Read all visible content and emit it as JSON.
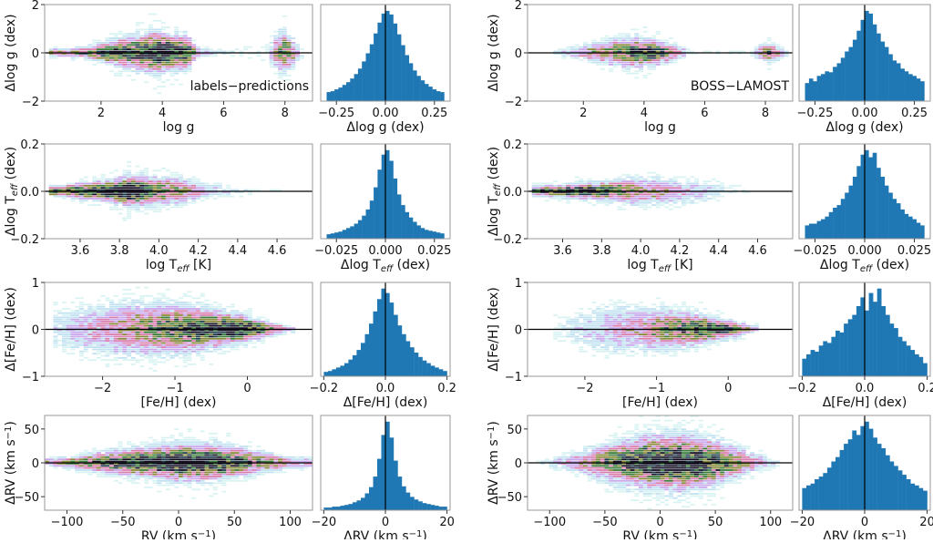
{
  "colors": {
    "hist": "#1f77b4",
    "zero_line": "#000000",
    "frame": "#999999"
  },
  "colormap": [
    "#d9f3f3",
    "#c2e2f2",
    "#c9a8ec",
    "#d97fae",
    "#8a8a3c",
    "#3a7d3c",
    "#1e3c4c",
    "#140f24"
  ],
  "chart_data": [
    {
      "type": "heatmap",
      "group": "left",
      "row": 0,
      "annotation": "labels−predictions",
      "xlim": [
        0.16,
        8.9
      ],
      "ylim": [
        -2,
        2
      ],
      "xticks": [
        2,
        4,
        6,
        8
      ],
      "xticklabels": [
        "2",
        "4",
        "6",
        "8"
      ],
      "yticks": [
        -2,
        0,
        2
      ],
      "yticklabels": [
        "−2",
        "0",
        "2"
      ],
      "xlabel": [
        {
          "t": "log g",
          "s": ""
        }
      ],
      "ylabel": [
        {
          "t": "Δlog g (dex)",
          "s": ""
        }
      ],
      "ridge": [
        [
          0.4,
          0.1,
          0.3
        ],
        [
          1.5,
          0.12,
          0.5
        ],
        [
          2.5,
          0.25,
          0.8
        ],
        [
          3.2,
          0.35,
          0.7
        ],
        [
          3.8,
          0.4,
          0.9
        ],
        [
          4.3,
          0.3,
          1.0
        ],
        [
          4.8,
          0.35,
          0.7
        ],
        [
          5.2,
          0.1,
          0.25
        ],
        [
          6,
          0.1,
          0.06
        ],
        [
          7.4,
          0.3,
          0.04
        ],
        [
          8.0,
          0.45,
          0.6
        ],
        [
          8.5,
          0.2,
          0.08
        ]
      ]
    },
    {
      "type": "bar",
      "group": "left",
      "row": 0,
      "xlim": [
        -0.33,
        0.33
      ],
      "xticks": [
        -0.25,
        0,
        0.25
      ],
      "xticklabels": [
        "−0.25",
        "0.00",
        "0.25"
      ],
      "xlabel": [
        {
          "t": "Δlog g (dex)",
          "s": ""
        }
      ],
      "range": [
        -0.3,
        0.3
      ],
      "values": [
        0.1,
        0.11,
        0.13,
        0.15,
        0.18,
        0.21,
        0.25,
        0.3,
        0.36,
        0.44,
        0.53,
        0.63,
        0.75,
        0.87,
        0.97,
        1.0,
        0.96,
        0.86,
        0.74,
        0.62,
        0.51,
        0.42,
        0.34,
        0.28,
        0.23,
        0.19,
        0.16,
        0.13,
        0.11,
        0.1
      ]
    },
    {
      "type": "heatmap",
      "group": "right",
      "row": 0,
      "annotation": "BOSS−LAMOST",
      "xlim": [
        0.16,
        8.9
      ],
      "ylim": [
        -2,
        2
      ],
      "xticks": [
        2,
        4,
        6,
        8
      ],
      "xticklabels": [
        "2",
        "4",
        "6",
        "8"
      ],
      "yticks": [
        -2,
        0,
        2
      ],
      "yticklabels": [
        "−2",
        "0",
        "2"
      ],
      "xlabel": [
        {
          "t": "log g",
          "s": ""
        }
      ],
      "ylabel": [
        {
          "t": "Δlog g (dex)",
          "s": ""
        }
      ],
      "ridge": [
        [
          1.2,
          0.1,
          0.1
        ],
        [
          2.4,
          0.2,
          0.4
        ],
        [
          3.2,
          0.3,
          0.5
        ],
        [
          3.8,
          0.3,
          0.7
        ],
        [
          4.3,
          0.25,
          0.8
        ],
        [
          4.9,
          0.2,
          0.4
        ],
        [
          5.5,
          0.1,
          0.05
        ],
        [
          7.5,
          0.1,
          0.03
        ],
        [
          8.1,
          0.2,
          0.6
        ],
        [
          8.6,
          0.15,
          0.1
        ]
      ]
    },
    {
      "type": "bar",
      "group": "right",
      "row": 0,
      "xlim": [
        -0.33,
        0.33
      ],
      "xticks": [
        -0.25,
        0,
        0.25
      ],
      "xticklabels": [
        "−0.25",
        "0.00",
        "0.25"
      ],
      "xlabel": [
        {
          "t": "Δlog g (dex)",
          "s": ""
        }
      ],
      "range": [
        -0.3,
        0.3
      ],
      "values": [
        0.2,
        0.25,
        0.22,
        0.28,
        0.3,
        0.33,
        0.32,
        0.38,
        0.42,
        0.48,
        0.55,
        0.6,
        0.68,
        0.78,
        0.9,
        1.0,
        0.97,
        0.85,
        0.75,
        0.66,
        0.6,
        0.52,
        0.45,
        0.42,
        0.36,
        0.33,
        0.3,
        0.28,
        0.25,
        0.22
      ]
    },
    {
      "type": "heatmap",
      "group": "left",
      "row": 1,
      "xlim": [
        3.42,
        4.78
      ],
      "ylim": [
        -0.2,
        0.2
      ],
      "xticks": [
        3.6,
        3.8,
        4.0,
        4.2,
        4.4,
        4.6
      ],
      "xticklabels": [
        "3.6",
        "3.8",
        "4.0",
        "4.2",
        "4.4",
        "4.6"
      ],
      "yticks": [
        -0.2,
        0,
        0.2
      ],
      "yticklabels": [
        "−0.2",
        "0.0",
        "0.2"
      ],
      "xlabel": [
        {
          "t": "log T",
          "s": ""
        },
        {
          "t": "eff",
          "s": "sub"
        },
        {
          "t": " [K]",
          "s": ""
        }
      ],
      "ylabel": [
        {
          "t": "Δlog T",
          "s": ""
        },
        {
          "t": "eff",
          "s": "sub"
        },
        {
          "t": " (dex)",
          "s": ""
        }
      ],
      "ridge": [
        [
          3.46,
          0.01,
          0.6
        ],
        [
          3.6,
          0.015,
          0.8
        ],
        [
          3.75,
          0.02,
          0.9
        ],
        [
          3.85,
          0.03,
          1.0
        ],
        [
          3.95,
          0.03,
          0.6
        ],
        [
          4.1,
          0.03,
          0.4
        ],
        [
          4.25,
          0.02,
          0.15
        ],
        [
          4.45,
          0.015,
          0.05
        ],
        [
          4.65,
          0.01,
          0.02
        ]
      ]
    },
    {
      "type": "bar",
      "group": "left",
      "row": 1,
      "xlim": [
        -0.033,
        0.033
      ],
      "xticks": [
        -0.025,
        0,
        0.025
      ],
      "xticklabels": [
        "−0.025",
        "0.000",
        "0.025"
      ],
      "xlabel": [
        {
          "t": "Δlog T",
          "s": ""
        },
        {
          "t": "eff",
          "s": "sub"
        },
        {
          "t": " (dex)",
          "s": ""
        }
      ],
      "range": [
        -0.03,
        0.03
      ],
      "values": [
        0.05,
        0.06,
        0.07,
        0.08,
        0.1,
        0.12,
        0.14,
        0.17,
        0.21,
        0.26,
        0.33,
        0.43,
        0.58,
        0.78,
        0.95,
        1.0,
        0.88,
        0.68,
        0.5,
        0.38,
        0.3,
        0.24,
        0.19,
        0.15,
        0.12,
        0.1,
        0.09,
        0.08,
        0.07,
        0.06
      ]
    },
    {
      "type": "heatmap",
      "group": "right",
      "row": 1,
      "xlim": [
        3.42,
        4.78
      ],
      "ylim": [
        -0.2,
        0.2
      ],
      "xticks": [
        3.6,
        3.8,
        4.0,
        4.2,
        4.4,
        4.6
      ],
      "xticklabels": [
        "3.6",
        "3.8",
        "4.0",
        "4.2",
        "4.4",
        "4.6"
      ],
      "yticks": [
        -0.2,
        0,
        0.2
      ],
      "yticklabels": [
        "−0.2",
        "0.0",
        "0.2"
      ],
      "xlabel": [
        {
          "t": "log T",
          "s": ""
        },
        {
          "t": "eff",
          "s": "sub"
        },
        {
          "t": " [K]",
          "s": ""
        }
      ],
      "ylabel": [
        {
          "t": "Δlog T",
          "s": ""
        },
        {
          "t": "eff",
          "s": "sub"
        },
        {
          "t": " (dex)",
          "s": ""
        }
      ],
      "ridge": [
        [
          3.47,
          0.01,
          0.7
        ],
        [
          3.6,
          0.012,
          0.8
        ],
        [
          3.7,
          0.015,
          0.9
        ],
        [
          3.85,
          0.02,
          0.6
        ],
        [
          3.95,
          0.03,
          0.4
        ],
        [
          4.1,
          0.03,
          0.3
        ],
        [
          4.3,
          0.03,
          0.15
        ],
        [
          4.5,
          0.02,
          0.04
        ],
        [
          4.6,
          0.01,
          0.01
        ]
      ]
    },
    {
      "type": "bar",
      "group": "right",
      "row": 1,
      "xlim": [
        -0.033,
        0.033
      ],
      "xticks": [
        -0.025,
        0,
        0.025
      ],
      "xticklabels": [
        "−0.025",
        "0.000",
        "0.025"
      ],
      "xlabel": [
        {
          "t": "Δlog T",
          "s": ""
        },
        {
          "t": "eff",
          "s": "sub"
        },
        {
          "t": " (dex)",
          "s": ""
        }
      ],
      "range": [
        -0.03,
        0.03
      ],
      "values": [
        0.15,
        0.17,
        0.17,
        0.2,
        0.22,
        0.25,
        0.3,
        0.35,
        0.38,
        0.45,
        0.52,
        0.6,
        0.7,
        0.82,
        0.95,
        1.0,
        0.92,
        0.97,
        0.8,
        0.7,
        0.6,
        0.52,
        0.45,
        0.4,
        0.33,
        0.28,
        0.25,
        0.22,
        0.18,
        0.15
      ]
    },
    {
      "type": "heatmap",
      "group": "left",
      "row": 2,
      "xlim": [
        -2.8,
        0.9
      ],
      "ylim": [
        -1,
        1
      ],
      "xticks": [
        -2,
        -1,
        0
      ],
      "xticklabels": [
        "−2",
        "−1",
        "0"
      ],
      "yticks": [
        -1,
        0,
        1
      ],
      "yticklabels": [
        "−1",
        "0",
        "1"
      ],
      "xlabel": [
        {
          "t": "[Fe/H] (dex)",
          "s": ""
        }
      ],
      "ylabel": [
        {
          "t": "Δ[Fe/H] (dex)",
          "s": ""
        }
      ],
      "ridge": [
        [
          -2.6,
          0.3,
          0.1
        ],
        [
          -2,
          0.3,
          0.25
        ],
        [
          -1.5,
          0.3,
          0.4
        ],
        [
          -1,
          0.25,
          0.6
        ],
        [
          -0.6,
          0.2,
          0.85
        ],
        [
          -0.3,
          0.15,
          1.0
        ],
        [
          0,
          0.12,
          0.9
        ],
        [
          0.3,
          0.08,
          0.5
        ],
        [
          0.6,
          0.05,
          0.15
        ]
      ]
    },
    {
      "type": "bar",
      "group": "left",
      "row": 2,
      "xlim": [
        -0.21,
        0.21
      ],
      "xticks": [
        -0.2,
        0,
        0.2
      ],
      "xticklabels": [
        "−0.2",
        "0.0",
        "0.2"
      ],
      "xlabel": [
        {
          "t": "Δ[Fe/H] (dex)",
          "s": ""
        }
      ],
      "range": [
        -0.2,
        0.2
      ],
      "values": [
        0.05,
        0.06,
        0.08,
        0.1,
        0.12,
        0.15,
        0.19,
        0.24,
        0.3,
        0.38,
        0.48,
        0.6,
        0.74,
        0.88,
        1.0,
        0.95,
        0.84,
        0.7,
        0.58,
        0.48,
        0.4,
        0.33,
        0.27,
        0.22,
        0.18,
        0.15,
        0.12,
        0.1,
        0.08,
        0.06
      ]
    },
    {
      "type": "heatmap",
      "group": "right",
      "row": 2,
      "xlim": [
        -2.8,
        0.9
      ],
      "ylim": [
        -1,
        1
      ],
      "xticks": [
        -2,
        -1,
        0
      ],
      "xticklabels": [
        "−2",
        "−1",
        "0"
      ],
      "yticks": [
        -1,
        0,
        1
      ],
      "yticklabels": [
        "−1",
        "0",
        "1"
      ],
      "xlabel": [
        {
          "t": "[Fe/H] (dex)",
          "s": ""
        }
      ],
      "ylabel": [
        {
          "t": "Δ[Fe/H] (dex)",
          "s": ""
        }
      ],
      "ridge": [
        [
          -2.4,
          0.2,
          0.05
        ],
        [
          -1.8,
          0.3,
          0.15
        ],
        [
          -1.2,
          0.25,
          0.3
        ],
        [
          -0.8,
          0.2,
          0.5
        ],
        [
          -0.4,
          0.15,
          0.7
        ],
        [
          -0.1,
          0.1,
          0.8
        ],
        [
          0.1,
          0.08,
          0.6
        ],
        [
          0.35,
          0.05,
          0.2
        ]
      ]
    },
    {
      "type": "bar",
      "group": "right",
      "row": 2,
      "xlim": [
        -0.21,
        0.21
      ],
      "xticks": [
        -0.2,
        0,
        0.2
      ],
      "xticklabels": [
        "−0.2",
        "0.0",
        "0.2"
      ],
      "xlabel": [
        {
          "t": "Δ[Fe/H] (dex)",
          "s": ""
        }
      ],
      "range": [
        -0.2,
        0.2
      ],
      "values": [
        0.2,
        0.25,
        0.3,
        0.28,
        0.35,
        0.4,
        0.38,
        0.45,
        0.52,
        0.5,
        0.6,
        0.65,
        0.7,
        0.8,
        0.9,
        0.75,
        0.95,
        0.85,
        1.0,
        0.8,
        0.7,
        0.6,
        0.55,
        0.45,
        0.4,
        0.35,
        0.3,
        0.25,
        0.22,
        0.15
      ]
    },
    {
      "type": "heatmap",
      "group": "left",
      "row": 3,
      "xlim": [
        -120,
        120
      ],
      "ylim": [
        -70,
        70
      ],
      "xticks": [
        -100,
        -50,
        0,
        50,
        100
      ],
      "xticklabels": [
        "−100",
        "−50",
        "0",
        "50",
        "100"
      ],
      "yticks": [
        -50,
        0,
        50
      ],
      "yticklabels": [
        "−50",
        "0",
        "50"
      ],
      "xlabel": [
        {
          "t": "RV (km s",
          "s": ""
        },
        {
          "t": "−1",
          "s": "sup"
        },
        {
          "t": ")",
          "s": ""
        }
      ],
      "ylabel": [
        {
          "t": "ΔRV (km s",
          "s": ""
        },
        {
          "t": "−1",
          "s": "sup"
        },
        {
          "t": ")",
          "s": ""
        }
      ],
      "ridge": [
        [
          -120,
          3,
          0.3
        ],
        [
          -90,
          5,
          0.5
        ],
        [
          -60,
          8,
          0.7
        ],
        [
          -30,
          10,
          0.9
        ],
        [
          0,
          12,
          1.0
        ],
        [
          30,
          12,
          0.9
        ],
        [
          60,
          10,
          0.6
        ],
        [
          90,
          6,
          0.35
        ],
        [
          120,
          4,
          0.2
        ]
      ]
    },
    {
      "type": "bar",
      "group": "left",
      "row": 3,
      "xlim": [
        -21,
        21
      ],
      "xticks": [
        -20,
        0,
        20
      ],
      "xticklabels": [
        "−20",
        "0",
        "20"
      ],
      "xlabel": [
        {
          "t": "ΔRV (km s",
          "s": ""
        },
        {
          "t": "−1",
          "s": "sup"
        },
        {
          "t": ")",
          "s": ""
        }
      ],
      "range": [
        -20,
        20
      ],
      "values": [
        0.03,
        0.03,
        0.04,
        0.04,
        0.05,
        0.06,
        0.07,
        0.09,
        0.11,
        0.14,
        0.19,
        0.26,
        0.38,
        0.58,
        0.85,
        1.0,
        0.82,
        0.56,
        0.38,
        0.27,
        0.2,
        0.15,
        0.12,
        0.1,
        0.08,
        0.07,
        0.06,
        0.05,
        0.04,
        0.04
      ]
    },
    {
      "type": "heatmap",
      "group": "right",
      "row": 3,
      "xlim": [
        -120,
        120
      ],
      "ylim": [
        -70,
        70
      ],
      "xticks": [
        -100,
        -50,
        0,
        50,
        100
      ],
      "xticklabels": [
        "−100",
        "−50",
        "0",
        "50",
        "100"
      ],
      "yticks": [
        -50,
        0,
        50
      ],
      "yticklabels": [
        "−50",
        "0",
        "50"
      ],
      "xlabel": [
        {
          "t": "RV (km s",
          "s": ""
        },
        {
          "t": "−1",
          "s": "sup"
        },
        {
          "t": ")",
          "s": ""
        }
      ],
      "ylabel": [
        {
          "t": "ΔRV (km s",
          "s": ""
        },
        {
          "t": "−1",
          "s": "sup"
        },
        {
          "t": ")",
          "s": ""
        }
      ],
      "ridge": [
        [
          -110,
          3,
          0.05
        ],
        [
          -70,
          10,
          0.3
        ],
        [
          -40,
          15,
          0.6
        ],
        [
          -10,
          18,
          0.9
        ],
        [
          20,
          18,
          1.0
        ],
        [
          50,
          16,
          0.7
        ],
        [
          80,
          10,
          0.3
        ],
        [
          105,
          5,
          0.08
        ]
      ]
    },
    {
      "type": "bar",
      "group": "right",
      "row": 3,
      "xlim": [
        -21,
        21
      ],
      "xticks": [
        -20,
        0,
        20
      ],
      "xticklabels": [
        "−20",
        "0",
        "20"
      ],
      "xlabel": [
        {
          "t": "ΔRV (km s",
          "s": ""
        },
        {
          "t": "−1",
          "s": "sup"
        },
        {
          "t": ")",
          "s": ""
        }
      ],
      "range": [
        -20,
        20
      ],
      "values": [
        0.25,
        0.28,
        0.3,
        0.35,
        0.38,
        0.42,
        0.48,
        0.55,
        0.6,
        0.68,
        0.75,
        0.8,
        0.9,
        0.85,
        0.95,
        1.0,
        0.92,
        0.82,
        0.75,
        0.7,
        0.62,
        0.55,
        0.5,
        0.45,
        0.4,
        0.35,
        0.3,
        0.28,
        0.25,
        0.22
      ]
    }
  ]
}
